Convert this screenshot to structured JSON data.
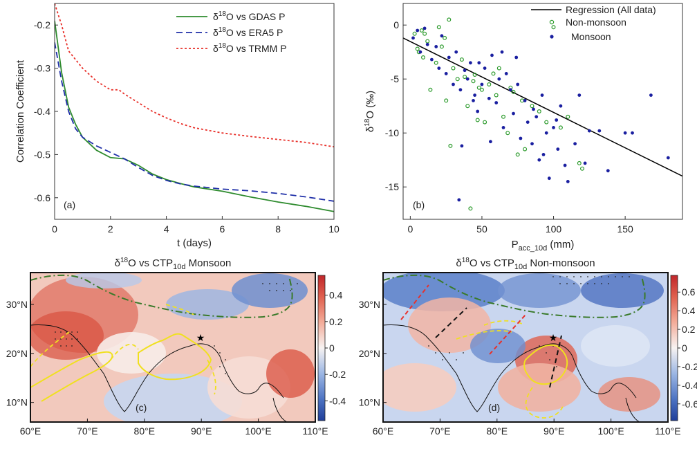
{
  "chart_data": [
    {
      "id": "a",
      "type": "line",
      "panel_label": "(a)",
      "xlabel": "t (days)",
      "ylabel": "Correlation Coefficient",
      "xlim": [
        0,
        10
      ],
      "ylim": [
        -0.65,
        -0.15
      ],
      "xticks": [
        "0",
        "2",
        "4",
        "6",
        "8",
        "10"
      ],
      "yticks": [
        "-0.2",
        "-0.3",
        "-0.4",
        "-0.5",
        "-0.6"
      ],
      "legend_position": "top-right",
      "series": [
        {
          "name": "δ18O vs GDAS P",
          "color": "#2e8b2e",
          "dash": "solid",
          "x": [
            0,
            0.25,
            0.5,
            0.75,
            1,
            1.5,
            2,
            2.5,
            3,
            3.5,
            4,
            4.5,
            5,
            6,
            7,
            8,
            9,
            10
          ],
          "y": [
            -0.19,
            -0.31,
            -0.39,
            -0.43,
            -0.46,
            -0.49,
            -0.507,
            -0.51,
            -0.525,
            -0.545,
            -0.558,
            -0.567,
            -0.575,
            -0.585,
            -0.598,
            -0.61,
            -0.62,
            -0.632
          ]
        },
        {
          "name": "δ18O vs ERA5 P",
          "color": "#1f2fa8",
          "dash": "dashed",
          "x": [
            0,
            0.25,
            0.5,
            0.75,
            1,
            1.5,
            2,
            2.5,
            3,
            3.5,
            4,
            4.5,
            5,
            6,
            7,
            8,
            9,
            10
          ],
          "y": [
            -0.24,
            -0.33,
            -0.4,
            -0.44,
            -0.46,
            -0.48,
            -0.495,
            -0.51,
            -0.53,
            -0.548,
            -0.56,
            -0.568,
            -0.573,
            -0.58,
            -0.584,
            -0.59,
            -0.598,
            -0.608
          ]
        },
        {
          "name": "δ18O vs TRMM P",
          "color": "#e8302a",
          "dash": "dotted",
          "x": [
            0,
            0.25,
            0.5,
            0.75,
            1,
            1.5,
            2,
            2.3,
            2.5,
            3,
            3.5,
            4,
            4.5,
            5,
            6,
            7,
            8,
            9,
            10
          ],
          "y": [
            -0.15,
            -0.2,
            -0.26,
            -0.28,
            -0.3,
            -0.33,
            -0.35,
            -0.35,
            -0.36,
            -0.38,
            -0.4,
            -0.415,
            -0.428,
            -0.438,
            -0.45,
            -0.458,
            -0.465,
            -0.472,
            -0.482
          ]
        }
      ]
    },
    {
      "id": "b",
      "type": "scatter",
      "panel_label": "(b)",
      "xlabel_main": "P",
      "xlabel_sub": "acc_10d",
      "xlabel_unit": " (mm)",
      "ylabel_main": "δ",
      "ylabel_sup": "18",
      "ylabel_rest": "O (‰)",
      "xlim": [
        -5,
        190
      ],
      "ylim": [
        -18,
        2
      ],
      "xticks": [
        "0",
        "50",
        "100",
        "150"
      ],
      "yticks": [
        "0",
        "-5",
        "-10",
        "-15"
      ],
      "legend_position": "top-right",
      "regression": {
        "name": "Regression (All data)",
        "color": "#000000",
        "x": [
          -5,
          190
        ],
        "y": [
          -1.2,
          -14.0
        ]
      },
      "series": [
        {
          "name": "Non-monsoon",
          "marker": "open-circle",
          "color": "#2a9a2a",
          "x": [
            3,
            5,
            8,
            9,
            12,
            14,
            18,
            20,
            22,
            25,
            28,
            30,
            33,
            36,
            40,
            42,
            45,
            48,
            50,
            52,
            55,
            58,
            60,
            62,
            65,
            68,
            70,
            72,
            75,
            78,
            80,
            85,
            90,
            95,
            100,
            105,
            110,
            118,
            120,
            6,
            10,
            24,
            27,
            38,
            44,
            47
          ],
          "y": [
            -0.8,
            -2.2,
            -0.5,
            -3.0,
            -1.5,
            -6.0,
            -3.5,
            -0.2,
            -2.0,
            -7.0,
            -11.2,
            -4.0,
            -5.0,
            -3.2,
            -7.5,
            -17.0,
            -4.6,
            -5.8,
            -6.0,
            -9.0,
            -5.5,
            -4.5,
            -6.5,
            -4.0,
            -8.5,
            -10.0,
            -5.8,
            -6.2,
            -12.0,
            -7.0,
            -11.5,
            -7.5,
            -8.0,
            -9.0,
            -0.2,
            -9.5,
            -8.5,
            -12.8,
            -13.3,
            -2.5,
            -0.8,
            -1.2,
            0.5,
            -4.8,
            -5.2,
            -8.8
          ]
        },
        {
          "name": "Monsoon",
          "marker": "filled-circle",
          "color": "#1a1fa0",
          "x": [
            2,
            5,
            7,
            10,
            12,
            15,
            18,
            20,
            22,
            25,
            27,
            30,
            32,
            35,
            38,
            40,
            42,
            45,
            47,
            50,
            52,
            55,
            57,
            60,
            62,
            65,
            67,
            70,
            72,
            75,
            77,
            80,
            82,
            85,
            88,
            90,
            92,
            95,
            97,
            100,
            103,
            105,
            108,
            110,
            115,
            118,
            122,
            132,
            138,
            150,
            155,
            168,
            180,
            34,
            36,
            44,
            48,
            56,
            64,
            74,
            86,
            93,
            102,
            125
          ],
          "y": [
            -1.2,
            -0.5,
            -2.5,
            -0.3,
            -1.8,
            -3.2,
            -2.0,
            -4.0,
            -1.0,
            -4.5,
            -3.0,
            -5.5,
            -2.5,
            -6.0,
            -4.2,
            -5.0,
            -3.5,
            -6.5,
            -8.0,
            -5.5,
            -4.0,
            -6.8,
            -2.8,
            -7.2,
            -5.0,
            -9.5,
            -4.5,
            -6.0,
            -8.2,
            -5.5,
            -10.5,
            -7.0,
            -9.0,
            -11.0,
            -8.5,
            -12.5,
            -6.5,
            -10.0,
            -14.2,
            -9.5,
            -11.5,
            -7.5,
            -13.0,
            -14.5,
            -11.0,
            -6.5,
            -12.8,
            -9.8,
            -13.5,
            -10.0,
            -10.0,
            -6.5,
            -12.3,
            -16.2,
            -11.2,
            -7.0,
            -3.5,
            -10.8,
            -2.5,
            -3.0,
            -7.8,
            -12.0,
            -8.8,
            -9.8
          ]
        }
      ]
    },
    {
      "id": "c",
      "type": "heatmap",
      "panel_label": "(c)",
      "title_pre": "δ",
      "title_sup": "18",
      "title_mid": "O vs CTP",
      "title_sub": "10d",
      "title_post": " Monsoon",
      "xticks": [
        "60°E",
        "70°E",
        "80°E",
        "90°E",
        "100°E",
        "110°E"
      ],
      "yticks": [
        "30°N",
        "20°N",
        "10°N"
      ],
      "colorbar_ticks": [
        "0.4",
        "0.2",
        "0",
        "-0.2",
        "-0.4"
      ],
      "colorbar_range": [
        -0.55,
        0.55
      ]
    },
    {
      "id": "d",
      "type": "heatmap",
      "panel_label": "(d)",
      "title_pre": "δ",
      "title_sup": "18",
      "title_mid": "O vs CTP",
      "title_sub": "10d",
      "title_post": " Non-monsoon",
      "xticks": [
        "60°E",
        "70°E",
        "80°E",
        "90°E",
        "100°E",
        "110°E"
      ],
      "yticks": [
        "30°N",
        "20°N",
        "10°N"
      ],
      "colorbar_ticks": [
        "0.6",
        "0.4",
        "0.2",
        "0",
        "-0.2",
        "-0.4",
        "-0.6"
      ],
      "colorbar_range": [
        -0.78,
        0.78
      ]
    }
  ],
  "colors": {
    "green": "#2e8b2e",
    "blue": "#1f2fa8",
    "red": "#e8302a",
    "map_contour": "#f0e020",
    "plateau_line": "#3a7a2a"
  }
}
